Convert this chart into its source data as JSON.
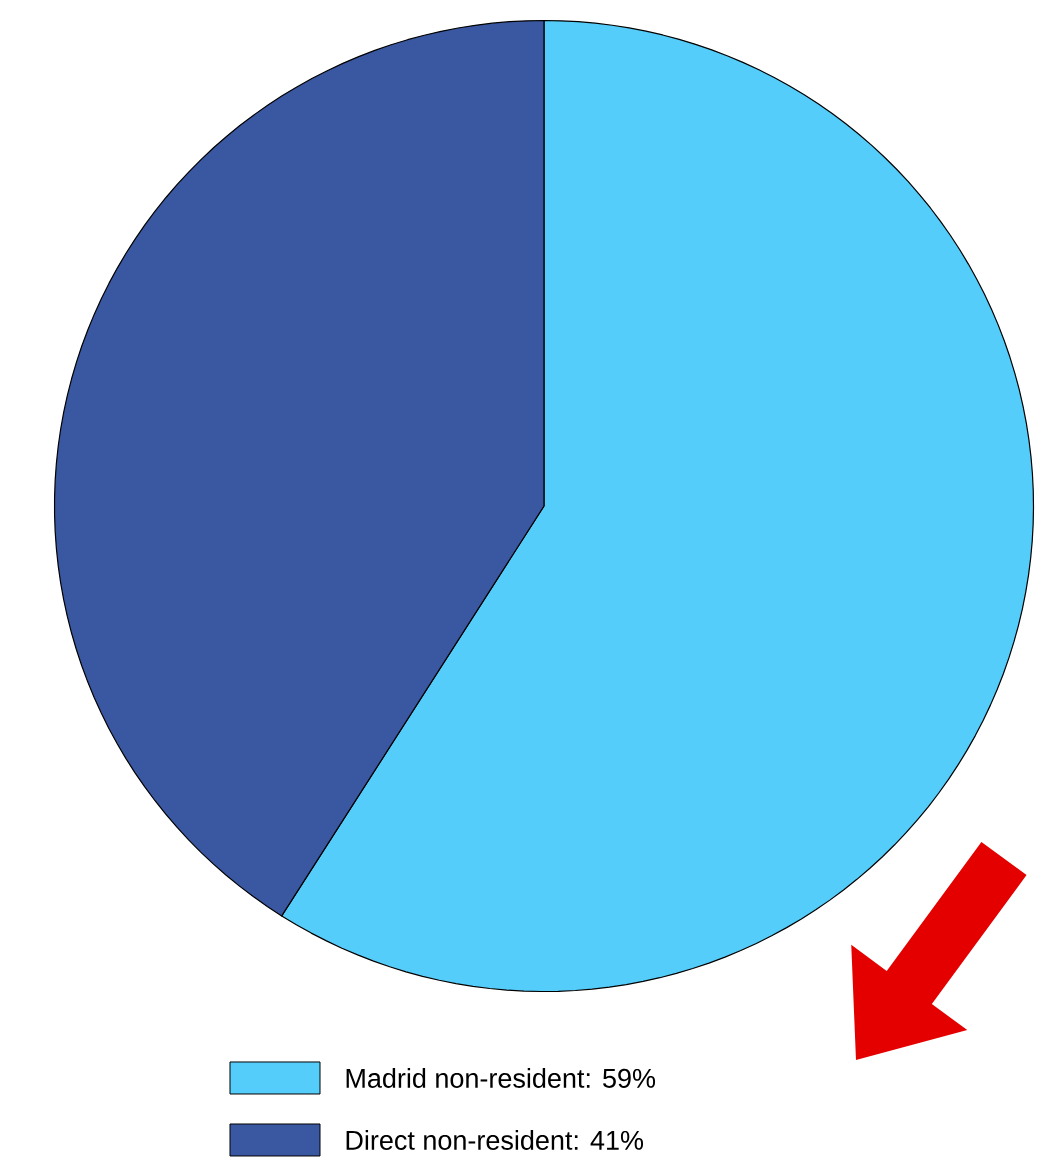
{
  "chart_data": {
    "type": "pie",
    "categories": [
      "Madrid non-resident: 59%",
      "Direct non-resident: 41%"
    ],
    "values": [
      59,
      41
    ],
    "colors": [
      "#55cdfa",
      "#3a58a2"
    ],
    "legend": "bottom"
  }
}
